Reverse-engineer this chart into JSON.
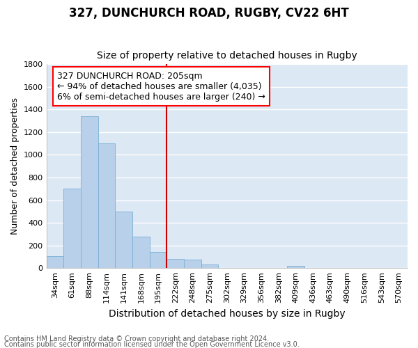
{
  "title": "327, DUNCHURCH ROAD, RUGBY, CV22 6HT",
  "subtitle": "Size of property relative to detached houses in Rugby",
  "xlabel": "Distribution of detached houses by size in Rugby",
  "ylabel": "Number of detached properties",
  "footnote1": "Contains HM Land Registry data © Crown copyright and database right 2024.",
  "footnote2": "Contains public sector information licensed under the Open Government Licence v3.0.",
  "annotation_line1": "327 DUNCHURCH ROAD: 205sqm",
  "annotation_line2": "← 94% of detached houses are smaller (4,035)",
  "annotation_line3": "6% of semi-detached houses are larger (240) →",
  "bar_labels": [
    "34sqm",
    "61sqm",
    "88sqm",
    "114sqm",
    "141sqm",
    "168sqm",
    "195sqm",
    "222sqm",
    "248sqm",
    "275sqm",
    "302sqm",
    "329sqm",
    "356sqm",
    "382sqm",
    "409sqm",
    "436sqm",
    "463sqm",
    "490sqm",
    "516sqm",
    "543sqm",
    "570sqm"
  ],
  "bar_values": [
    105,
    700,
    1340,
    1100,
    500,
    280,
    140,
    80,
    75,
    30,
    0,
    0,
    0,
    0,
    20,
    0,
    0,
    0,
    0,
    0,
    0
  ],
  "bar_color": "#b8d0ea",
  "bar_edge_color": "#7bafd4",
  "vline_x": 6.5,
  "vline_color": "#cc0000",
  "bg_color": "#dde8f5",
  "grid_color": "#ffffff",
  "fig_bg_color": "#ffffff",
  "ylim": [
    0,
    1800
  ],
  "yticks": [
    0,
    200,
    400,
    600,
    800,
    1000,
    1200,
    1400,
    1600,
    1800
  ],
  "title_fontsize": 12,
  "subtitle_fontsize": 10,
  "ylabel_fontsize": 9,
  "xlabel_fontsize": 10,
  "tick_fontsize": 8,
  "annotation_fontsize": 9,
  "footnote_fontsize": 7
}
